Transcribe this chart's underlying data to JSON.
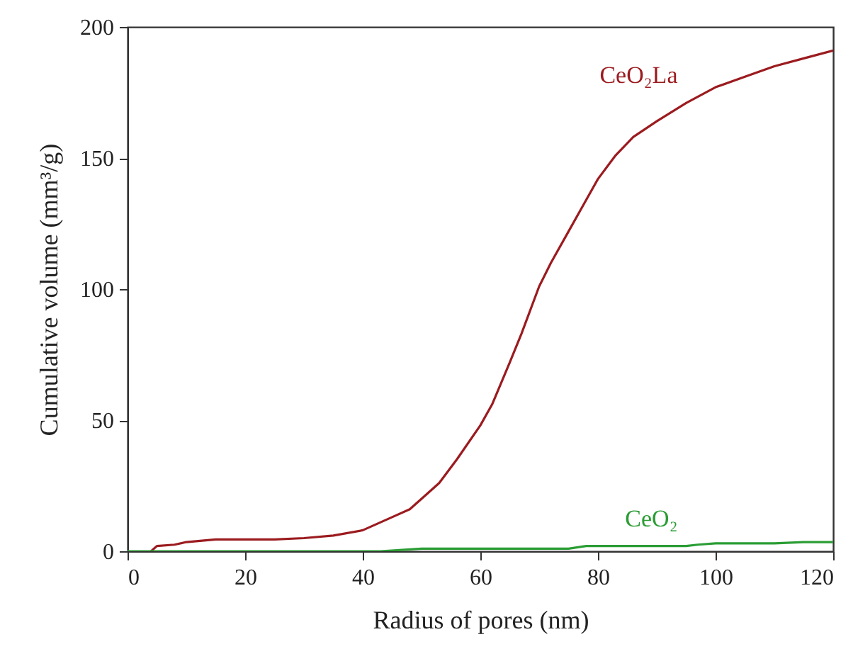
{
  "chart_data": {
    "type": "line",
    "xlabel": "Radius of pores (nm)",
    "ylabel": "Cumulative volume (mm³/g)",
    "xlim": [
      0,
      120
    ],
    "xticks": [
      0,
      20,
      40,
      60,
      80,
      100,
      120
    ],
    "ylim": [
      0,
      200
    ],
    "yticks": [
      0,
      50,
      100,
      150,
      200
    ],
    "grid": false,
    "marker": "none",
    "line_style": "solid",
    "series": [
      {
        "name": "CeO₂La",
        "color": "#9b1b1f",
        "x": [
          4,
          5,
          8,
          10,
          15,
          25,
          30,
          35,
          40,
          45,
          48,
          50,
          53,
          56,
          60,
          62,
          65,
          67,
          70,
          72,
          75,
          77,
          80,
          83,
          86,
          90,
          95,
          100,
          105,
          110,
          115,
          120
        ],
        "values": [
          0,
          2,
          2.5,
          3.5,
          4.5,
          4.5,
          5,
          6,
          8,
          13,
          16,
          20,
          26,
          35,
          48,
          56,
          72,
          83,
          101,
          110,
          122,
          130,
          142,
          151,
          158,
          164,
          171,
          177,
          181,
          185,
          188,
          191
        ]
      },
      {
        "name": "CeO₂",
        "color": "#2a9d34",
        "x": [
          0,
          43,
          50,
          75,
          78,
          95,
          97,
          100,
          110,
          115,
          120
        ],
        "values": [
          0,
          0,
          1,
          1,
          2,
          2,
          2.5,
          3,
          3,
          3.5,
          3.5
        ]
      }
    ]
  }
}
